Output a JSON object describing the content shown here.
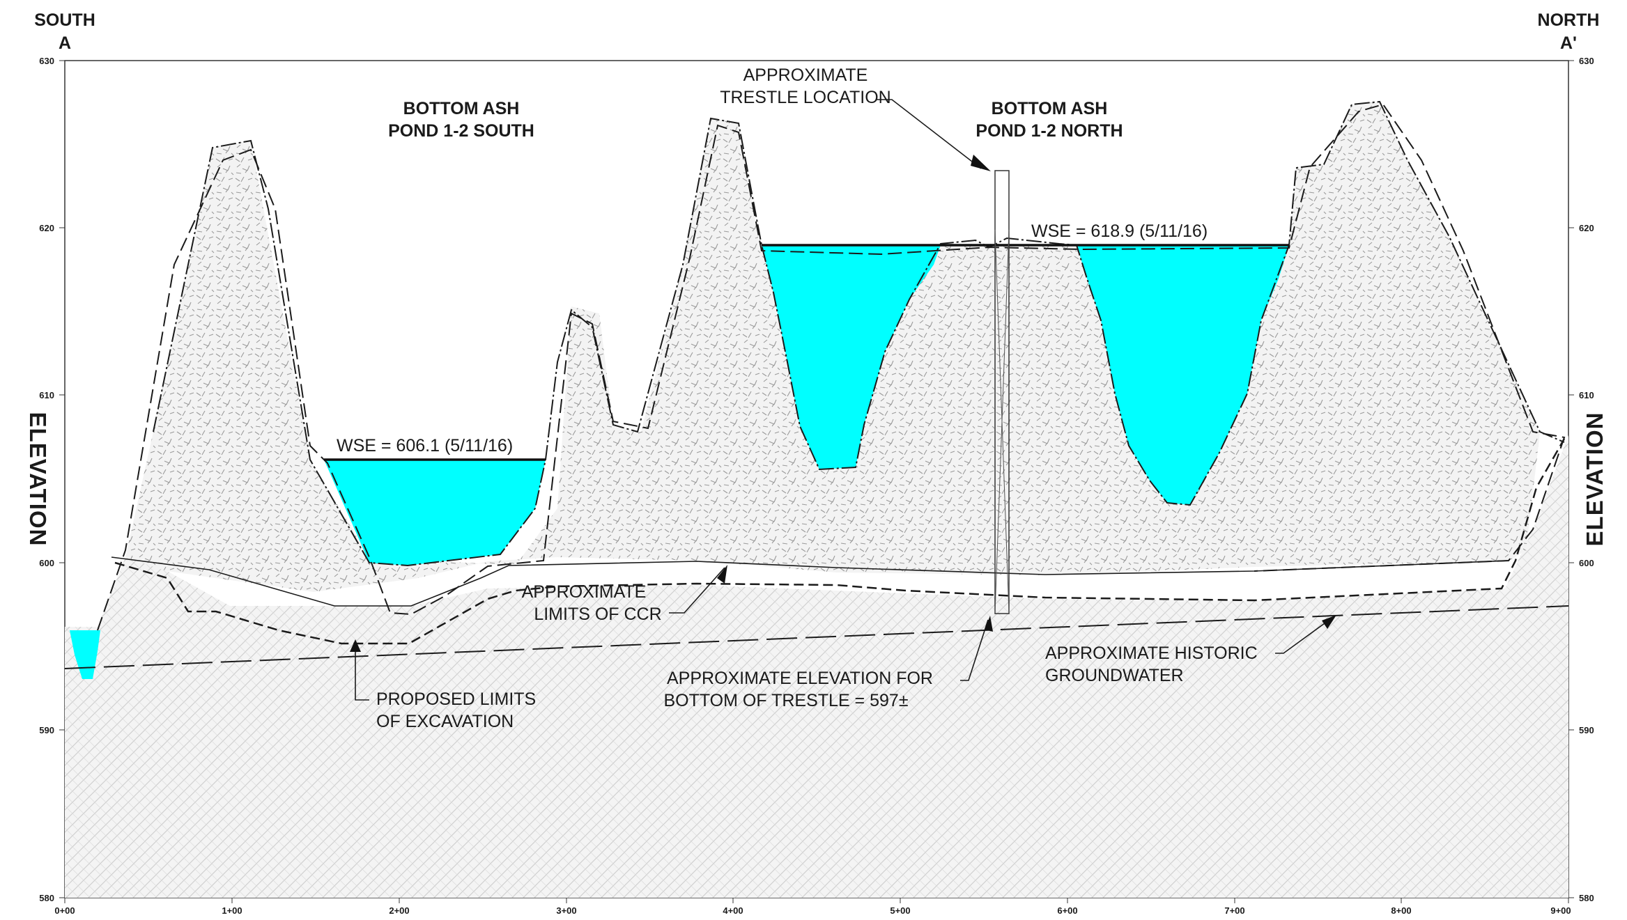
{
  "corners": {
    "left_top": "SOUTH",
    "left_bottom": "A",
    "right_top": "NORTH",
    "right_bottom": "A'"
  },
  "axis": {
    "elevation_label": "ELEVATION",
    "elevation_ticks": [
      "630",
      "620",
      "610",
      "600",
      "590",
      "580"
    ],
    "station_ticks": [
      "0+00",
      "1+00",
      "2+00",
      "3+00",
      "4+00",
      "5+00",
      "6+00",
      "7+00",
      "8+00",
      "9+00"
    ]
  },
  "ponds": {
    "south_line1": "BOTTOM ASH",
    "south_line2": "POND 1-2 SOUTH",
    "north_line1": "BOTTOM ASH",
    "north_line2": "POND 1-2 NORTH"
  },
  "annotations": {
    "wse_south": "WSE = 606.1 (5/11/16)",
    "wse_north": "WSE = 618.9 (5/11/16)",
    "trestle_loc_1": "APPROXIMATE",
    "trestle_loc_2": "TRESTLE LOCATION",
    "ccr_1": "APPROXIMATE",
    "ccr_2": "LIMITS OF CCR",
    "excav_1": "PROPOSED LIMITS",
    "excav_2": "OF EXCAVATION",
    "trestle_bottom_1": "APPROXIMATE ELEVATION FOR",
    "trestle_bottom_2": "BOTTOM OF TRESTLE = 597±",
    "groundwater_1": "APPROXIMATE HISTORIC",
    "groundwater_2": "GROUNDWATER"
  },
  "colors": {
    "water": "#00ffff",
    "ccr_fill": "#f1f1f1",
    "soil_fill": "#f4f4f4",
    "line": "#1a1a1a"
  }
}
